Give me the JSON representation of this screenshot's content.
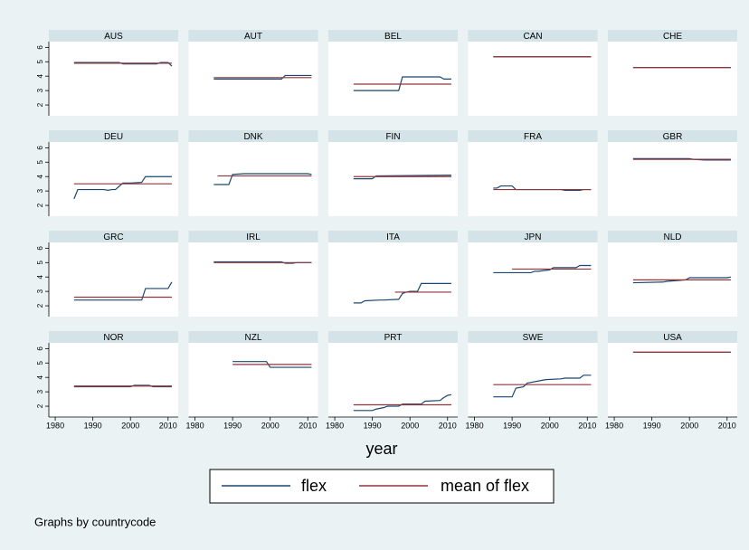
{
  "chart_data": {
    "type": "line",
    "x_label": "year",
    "note": "Graphs by countrycode",
    "xlim": [
      1978.3,
      2012.7
    ],
    "xticks": [
      1980,
      1990,
      2000,
      2010
    ],
    "ylim": [
      1.25,
      6.4
    ],
    "yticks": [
      2,
      3,
      4,
      5,
      6
    ],
    "series": [
      {
        "name": "flex",
        "color": "#1a476f"
      },
      {
        "name": "mean of flex",
        "color": "#90353b"
      }
    ],
    "panels": [
      {
        "title": "AUS",
        "x": [
          1985,
          1997,
          1998,
          2007,
          2008,
          2010,
          2011
        ],
        "flex": [
          4.95,
          4.95,
          4.85,
          4.85,
          4.95,
          4.95,
          4.7
        ],
        "mean": 4.9,
        "mean_x": [
          1985,
          2011
        ]
      },
      {
        "title": "AUT",
        "x": [
          1985,
          2003,
          2004,
          2011
        ],
        "flex": [
          3.8,
          3.8,
          4.05,
          4.05
        ],
        "mean": 3.9,
        "mean_x": [
          1985,
          2011
        ]
      },
      {
        "title": "BEL",
        "x": [
          1985,
          1997,
          1998,
          2008,
          2009,
          2011
        ],
        "flex": [
          3.0,
          3.0,
          3.95,
          3.95,
          3.8,
          3.8
        ],
        "mean": 3.45,
        "mean_x": [
          1985,
          2011
        ]
      },
      {
        "title": "CAN",
        "x": [
          1985,
          2011
        ],
        "flex": [
          5.35,
          5.35
        ],
        "mean": 5.35,
        "mean_x": [
          1985,
          2011
        ]
      },
      {
        "title": "CHE",
        "x": [
          1985,
          2011
        ],
        "flex": [
          4.6,
          4.6
        ],
        "mean": 4.6,
        "mean_x": [
          1985,
          2011
        ]
      },
      {
        "title": "DEU",
        "x": [
          1985,
          1986,
          1993,
          1994,
          1995,
          1996,
          1998,
          2000,
          2003,
          2004,
          2011
        ],
        "flex": [
          2.45,
          3.1,
          3.1,
          3.05,
          3.1,
          3.1,
          3.55,
          3.55,
          3.6,
          4.0,
          4.0
        ],
        "mean": 3.5,
        "mean_x": [
          1985,
          2011
        ]
      },
      {
        "title": "DNK",
        "x": [
          1985,
          1989,
          1990,
          1993,
          2010,
          2011
        ],
        "flex": [
          3.45,
          3.45,
          4.15,
          4.2,
          4.2,
          4.15
        ],
        "mean": 4.05,
        "mean_x": [
          1986,
          2011
        ]
      },
      {
        "title": "FIN",
        "x": [
          1985,
          1990,
          1991,
          2011
        ],
        "flex": [
          3.85,
          3.85,
          4.05,
          4.1
        ],
        "mean": 4.0,
        "mean_x": [
          1985,
          2011
        ]
      },
      {
        "title": "FRA",
        "x": [
          1985,
          1986,
          1987,
          1990,
          1991,
          2003,
          2004,
          2008,
          2009,
          2011
        ],
        "flex": [
          3.2,
          3.2,
          3.35,
          3.35,
          3.1,
          3.1,
          3.05,
          3.05,
          3.1,
          3.1
        ],
        "mean": 3.1,
        "mean_x": [
          1985,
          2011
        ]
      },
      {
        "title": "GBR",
        "x": [
          1985,
          2000,
          2001,
          2004,
          2011
        ],
        "flex": [
          5.25,
          5.25,
          5.2,
          5.15,
          5.15
        ],
        "mean": 5.2,
        "mean_x": [
          1985,
          2011
        ]
      },
      {
        "title": "GRC",
        "x": [
          1985,
          2003,
          2004,
          2010,
          2011
        ],
        "flex": [
          2.4,
          2.4,
          3.2,
          3.2,
          3.65
        ],
        "mean": 2.6,
        "mean_x": [
          1985,
          2011
        ]
      },
      {
        "title": "IRL",
        "x": [
          1985,
          2003,
          2004,
          2006,
          2007,
          2011
        ],
        "flex": [
          5.05,
          5.05,
          4.95,
          4.95,
          5.0,
          5.0
        ],
        "mean": 5.0,
        "mean_x": [
          1985,
          2011
        ]
      },
      {
        "title": "ITA",
        "x": [
          1985,
          1987,
          1988,
          1992,
          1993,
          1997,
          1998,
          1999,
          2000,
          2002,
          2003,
          2011
        ],
        "flex": [
          2.2,
          2.2,
          2.35,
          2.4,
          2.4,
          2.45,
          2.85,
          2.95,
          3.0,
          3.0,
          3.55,
          3.55
        ],
        "mean": 2.95,
        "mean_x": [
          1996,
          2011
        ]
      },
      {
        "title": "JPN",
        "x": [
          1985,
          1995,
          1996,
          1997,
          2000,
          2001,
          2007,
          2008,
          2011
        ],
        "flex": [
          4.3,
          4.3,
          4.4,
          4.4,
          4.5,
          4.65,
          4.65,
          4.8,
          4.8
        ],
        "mean": 4.55,
        "mean_x": [
          1990,
          2011
        ]
      },
      {
        "title": "NLD",
        "x": [
          1985,
          1993,
          1994,
          1999,
          2000,
          2010,
          2011
        ],
        "flex": [
          3.6,
          3.65,
          3.7,
          3.8,
          3.95,
          3.95,
          4.0
        ],
        "mean": 3.8,
        "mean_x": [
          1985,
          2011
        ]
      },
      {
        "title": "NOR",
        "x": [
          1985,
          2000,
          2001,
          2005,
          2006,
          2011
        ],
        "flex": [
          3.35,
          3.35,
          3.45,
          3.45,
          3.35,
          3.35
        ],
        "mean": 3.4,
        "mean_x": [
          1985,
          2011
        ]
      },
      {
        "title": "NZL",
        "x": [
          1990,
          1999,
          2000,
          2011
        ],
        "flex": [
          5.1,
          5.1,
          4.7,
          4.7
        ],
        "mean": 4.9,
        "mean_x": [
          1990,
          2011
        ]
      },
      {
        "title": "PRT",
        "x": [
          1985,
          1990,
          1991,
          1993,
          1994,
          1997,
          1998,
          2003,
          2004,
          2008,
          2009,
          2010,
          2011
        ],
        "flex": [
          1.7,
          1.7,
          1.8,
          1.9,
          2.0,
          2.0,
          2.15,
          2.15,
          2.35,
          2.4,
          2.6,
          2.75,
          2.8
        ],
        "mean": 2.1,
        "mean_x": [
          1985,
          2011
        ]
      },
      {
        "title": "SWE",
        "x": [
          1985,
          1990,
          1991,
          1993,
          1994,
          1998,
          1999,
          2003,
          2004,
          2008,
          2009,
          2011
        ],
        "flex": [
          2.65,
          2.65,
          3.25,
          3.35,
          3.6,
          3.8,
          3.85,
          3.9,
          3.95,
          3.95,
          4.15,
          4.15
        ],
        "mean": 3.5,
        "mean_x": [
          1985,
          2011
        ]
      },
      {
        "title": "USA",
        "x": [
          1985,
          2011
        ],
        "flex": [
          5.75,
          5.75
        ],
        "mean": 5.75,
        "mean_x": [
          1985,
          2011
        ]
      }
    ]
  }
}
